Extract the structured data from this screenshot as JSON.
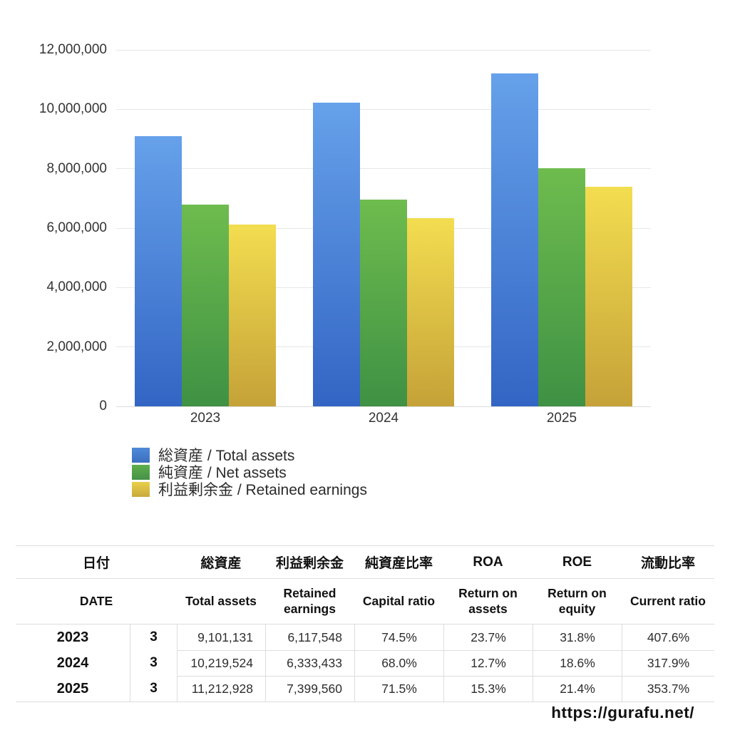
{
  "page": {
    "url_watermark": "https://gurafu.net/"
  },
  "chart_data": {
    "type": "bar",
    "title": "",
    "categories": [
      "2023",
      "2024",
      "2025"
    ],
    "series": [
      {
        "key": "total-assets",
        "name": "総資産 / Total assets",
        "values": [
          9101131,
          10219524,
          11212928
        ],
        "color_top": "#66A1EA",
        "color_bottom": "#3365C4",
        "legend_color_top": "#4E8AD8",
        "legend_color_bottom": "#3B6FC0"
      },
      {
        "key": "net-assets",
        "name": "純資産 / Net assets",
        "values": [
          6780343,
          6949276,
          8017244
        ],
        "values_note": "estimated from bars / capital ratio × total assets",
        "color_top": "#6EBC4E",
        "color_bottom": "#3F9144",
        "legend_color_top": "#5FAE4D",
        "legend_color_bottom": "#459247"
      },
      {
        "key": "retained-earnings",
        "name": "利益剰余金 / Retained earnings",
        "values": [
          6117548,
          6333433,
          7399560
        ],
        "color_top": "#F3DD50",
        "color_bottom": "#C5A238",
        "legend_color_top": "#E8D04A",
        "legend_color_bottom": "#C9A93C"
      }
    ],
    "xlabel": "",
    "ylabel": "",
    "ylim": [
      0,
      12000000
    ],
    "ytick_step": 2000000,
    "ytick_labels": [
      "0",
      "2,000,000",
      "4,000,000",
      "6,000,000",
      "8,000,000",
      "10,000,000",
      "12,000,000"
    ],
    "grid": "horizontal",
    "legend_position": "bottom-left"
  },
  "table": {
    "header_jp": [
      "日付",
      "総資産",
      "利益剰余金",
      "純資産比率",
      "ROA",
      "ROE",
      "流動比率"
    ],
    "header_en": [
      "DATE",
      "Total assets",
      "Retained earnings",
      "Capital ratio",
      "Return on assets",
      "Return on equity",
      "Current ratio"
    ],
    "rows": [
      {
        "year": "2023",
        "month": "3",
        "total_assets": "9,101,131",
        "retained_earnings": "6,117,548",
        "capital_ratio": "74.5%",
        "roa": "23.7%",
        "roe": "31.8%",
        "current_ratio": "407.6%"
      },
      {
        "year": "2024",
        "month": "3",
        "total_assets": "10,219,524",
        "retained_earnings": "6,333,433",
        "capital_ratio": "68.0%",
        "roa": "12.7%",
        "roe": "18.6%",
        "current_ratio": "317.9%"
      },
      {
        "year": "2025",
        "month": "3",
        "total_assets": "11,212,928",
        "retained_earnings": "7,399,560",
        "capital_ratio": "71.5%",
        "roa": "15.3%",
        "roe": "21.4%",
        "current_ratio": "353.7%"
      }
    ]
  }
}
